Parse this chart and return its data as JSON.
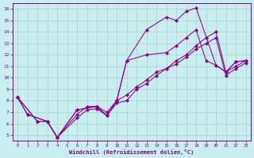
{
  "xlabel": "Windchill (Refroidissement éolien,°C)",
  "xlim_min": -0.5,
  "xlim_max": 23.5,
  "ylim_min": 4.5,
  "ylim_max": 16.5,
  "xticks": [
    0,
    1,
    2,
    3,
    4,
    5,
    6,
    7,
    8,
    9,
    10,
    11,
    12,
    13,
    14,
    15,
    16,
    17,
    18,
    19,
    20,
    21,
    22,
    23
  ],
  "yticks": [
    5,
    6,
    7,
    8,
    9,
    10,
    11,
    12,
    13,
    14,
    15,
    16
  ],
  "background_color": "#c8eef0",
  "line_color": "#880088",
  "grid_color": "#b0ccd0",
  "lines": [
    {
      "x": [
        0,
        1,
        3,
        4,
        6,
        8,
        9,
        10,
        11,
        13,
        15,
        16,
        17,
        18,
        20,
        21,
        22,
        23
      ],
      "y": [
        8.3,
        6.8,
        6.2,
        4.8,
        7.2,
        7.5,
        6.7,
        8.0,
        11.5,
        14.2,
        15.3,
        15.0,
        15.8,
        16.1,
        11.1,
        10.5,
        11.4,
        11.5
      ]
    },
    {
      "x": [
        0,
        1,
        3,
        4,
        6,
        8,
        9,
        10,
        11,
        13,
        15,
        16,
        17,
        18,
        19,
        20,
        21,
        22,
        23
      ],
      "y": [
        8.3,
        6.8,
        6.2,
        4.8,
        7.2,
        7.5,
        6.7,
        8.0,
        11.5,
        12.0,
        12.2,
        12.8,
        13.5,
        14.2,
        11.5,
        11.1,
        10.5,
        11.4,
        11.5
      ]
    },
    {
      "x": [
        0,
        2,
        3,
        4,
        6,
        7,
        8,
        9,
        10,
        11,
        12,
        13,
        14,
        15,
        16,
        17,
        18,
        19,
        20,
        21,
        22,
        23
      ],
      "y": [
        8.3,
        6.2,
        6.2,
        4.8,
        6.5,
        7.2,
        7.3,
        6.7,
        7.8,
        8.0,
        9.0,
        9.5,
        10.2,
        10.8,
        11.2,
        11.8,
        12.5,
        13.0,
        13.5,
        10.2,
        10.8,
        11.3
      ]
    },
    {
      "x": [
        0,
        2,
        3,
        4,
        6,
        7,
        8,
        9,
        10,
        11,
        12,
        13,
        14,
        15,
        16,
        17,
        18,
        19,
        20,
        21,
        22,
        23
      ],
      "y": [
        8.3,
        6.2,
        6.2,
        4.8,
        6.8,
        7.5,
        7.5,
        7.0,
        8.0,
        8.5,
        9.2,
        9.8,
        10.5,
        10.8,
        11.5,
        12.0,
        12.8,
        13.5,
        14.0,
        10.5,
        11.0,
        11.5
      ]
    }
  ]
}
